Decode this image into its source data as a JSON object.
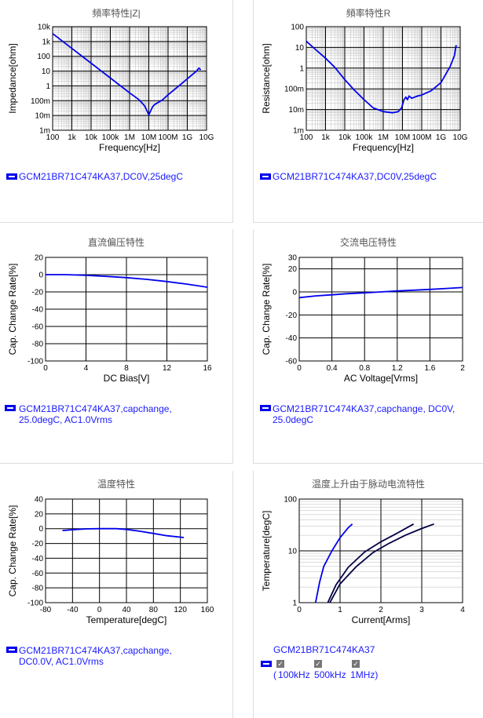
{
  "panels": {
    "impedance": {
      "title": "頻率特性|Z|",
      "legend": "GCM21BR71C474KA37,DC0V,25degC"
    },
    "resistance": {
      "title": "頻率特性R",
      "legend": "GCM21BR71C474KA37,DC0V,25degC"
    },
    "dcbias": {
      "title": "直流偏压特性",
      "legend_line1": "GCM21BR71C474KA37,capchange,",
      "legend_line2": "25.0degC, AC1.0Vrms"
    },
    "acvoltage": {
      "title": "交流电压特性",
      "legend_line1": "GCM21BR71C474KA37,capchange, DC0V,",
      "legend_line2": "25.0degC"
    },
    "temperature": {
      "title": "温度特性",
      "legend_line1": "GCM21BR71C474KA37,capchange,",
      "legend_line2": "DC0.0V, AC1.0Vrms"
    },
    "ripple": {
      "title": "温度上升由于脉动电流特性",
      "legend": "GCM21BR71C474KA37",
      "check_mark": "✓",
      "freq_open": "(",
      "freqs": [
        "100kHz",
        "500kHz",
        "1MHz)"
      ]
    }
  },
  "colors": {
    "curve": "#0000ee",
    "curve_dark": "#000044",
    "grid_major": "#000000",
    "grid_minor": "#bbbbbb",
    "legend": "#1a1aff"
  },
  "chart_data": [
    {
      "id": "impedance",
      "type": "line",
      "title": "頻率特性|Z|",
      "xlabel": "Frequency[Hz]",
      "ylabel": "Impedance[ohm]",
      "x_scale": "log",
      "y_scale": "log",
      "xlim": [
        100,
        10000000000
      ],
      "ylim": [
        0.001,
        10000
      ],
      "x_ticks": [
        {
          "v": 100,
          "l": "100"
        },
        {
          "v": 1000,
          "l": "1k"
        },
        {
          "v": 10000,
          "l": "10k"
        },
        {
          "v": 100000,
          "l": "100k"
        },
        {
          "v": 1000000,
          "l": "1M"
        },
        {
          "v": 10000000,
          "l": "10M"
        },
        {
          "v": 100000000,
          "l": "100M"
        },
        {
          "v": 1000000000,
          "l": "1G"
        },
        {
          "v": 10000000000,
          "l": "10G"
        }
      ],
      "y_ticks": [
        {
          "v": 0.001,
          "l": "1m"
        },
        {
          "v": 0.01,
          "l": "10m"
        },
        {
          "v": 0.1,
          "l": "100m"
        },
        {
          "v": 1,
          "l": "1"
        },
        {
          "v": 10,
          "l": "10"
        },
        {
          "v": 100,
          "l": "100"
        },
        {
          "v": 1000,
          "l": "1k"
        },
        {
          "v": 10000,
          "l": "10k"
        }
      ],
      "series": [
        {
          "values": [
            [
              100,
              3400
            ],
            [
              1000,
              340
            ],
            [
              10000,
              34
            ],
            [
              100000,
              3.4
            ],
            [
              1000000,
              0.34
            ],
            [
              3000000,
              0.12
            ],
            [
              6000000,
              0.045
            ],
            [
              9000000,
              0.015
            ],
            [
              10000000,
              0.011
            ],
            [
              12000000,
              0.018
            ],
            [
              16000000,
              0.04
            ],
            [
              20000000,
              0.055
            ],
            [
              50000000,
              0.11
            ],
            [
              100000000,
              0.25
            ],
            [
              500000000,
              1.4
            ],
            [
              1000000000,
              3
            ],
            [
              3000000000,
              10
            ],
            [
              4000000000,
              16
            ],
            [
              5000000000,
              12
            ]
          ]
        }
      ]
    },
    {
      "id": "resistance",
      "type": "line",
      "title": "頻率特性R",
      "xlabel": "Frequency[Hz]",
      "ylabel": "Resistance[ohm]",
      "x_scale": "log",
      "y_scale": "log",
      "xlim": [
        100,
        10000000000
      ],
      "ylim": [
        0.001,
        100
      ],
      "x_ticks": [
        {
          "v": 100,
          "l": "100"
        },
        {
          "v": 1000,
          "l": "1k"
        },
        {
          "v": 10000,
          "l": "10k"
        },
        {
          "v": 100000,
          "l": "100k"
        },
        {
          "v": 1000000,
          "l": "1M"
        },
        {
          "v": 10000000,
          "l": "10M"
        },
        {
          "v": 100000000,
          "l": "100M"
        },
        {
          "v": 1000000000,
          "l": "1G"
        },
        {
          "v": 10000000000,
          "l": "10G"
        }
      ],
      "y_ticks": [
        {
          "v": 0.001,
          "l": "1m"
        },
        {
          "v": 0.01,
          "l": "10m"
        },
        {
          "v": 0.1,
          "l": "100m"
        },
        {
          "v": 1,
          "l": "1"
        },
        {
          "v": 10,
          "l": "10"
        },
        {
          "v": 100,
          "l": "100"
        }
      ],
      "series": [
        {
          "values": [
            [
              100,
              20
            ],
            [
              300,
              8
            ],
            [
              1000,
              3
            ],
            [
              3000,
              1.1
            ],
            [
              10000,
              0.28
            ],
            [
              30000,
              0.09
            ],
            [
              100000,
              0.03
            ],
            [
              300000,
              0.012
            ],
            [
              1000000,
              0.008
            ],
            [
              3000000,
              0.007
            ],
            [
              6000000,
              0.008
            ],
            [
              9000000,
              0.012
            ],
            [
              12000000,
              0.03
            ],
            [
              15000000,
              0.04
            ],
            [
              18000000,
              0.03
            ],
            [
              22000000,
              0.045
            ],
            [
              30000000,
              0.035
            ],
            [
              60000000,
              0.045
            ],
            [
              100000000,
              0.05
            ],
            [
              300000000,
              0.08
            ],
            [
              1000000000,
              0.2
            ],
            [
              3000000000,
              1.2
            ],
            [
              5000000000,
              4
            ],
            [
              6000000000,
              12
            ],
            [
              6500000000,
              11
            ]
          ]
        }
      ]
    },
    {
      "id": "dcbias",
      "type": "line",
      "title": "直流偏压特性",
      "xlabel": "DC Bias[V]",
      "ylabel": "Cap. Change Rate[%]",
      "xlim": [
        0,
        16
      ],
      "ylim": [
        -100,
        20
      ],
      "x_ticks": [
        {
          "v": 0,
          "l": "0"
        },
        {
          "v": 4,
          "l": "4"
        },
        {
          "v": 8,
          "l": "8"
        },
        {
          "v": 12,
          "l": "12"
        },
        {
          "v": 16,
          "l": "16"
        }
      ],
      "y_ticks": [
        {
          "v": -100,
          "l": "-100"
        },
        {
          "v": -80,
          "l": "-80"
        },
        {
          "v": -60,
          "l": "-60"
        },
        {
          "v": -40,
          "l": "-40"
        },
        {
          "v": -20,
          "l": "-20"
        },
        {
          "v": 0,
          "l": "0"
        },
        {
          "v": 20,
          "l": "20"
        }
      ],
      "series": [
        {
          "values": [
            [
              0,
              0
            ],
            [
              2,
              0
            ],
            [
              4,
              -0.8
            ],
            [
              6,
              -2
            ],
            [
              8,
              -3.5
            ],
            [
              10,
              -5.5
            ],
            [
              12,
              -8
            ],
            [
              14,
              -11
            ],
            [
              16,
              -14.5
            ]
          ]
        }
      ]
    },
    {
      "id": "acvoltage",
      "type": "line",
      "title": "交流电压特性",
      "xlabel": "AC Voltage[Vrms]",
      "ylabel": "Cap. Change Rate[%]",
      "xlim": [
        0,
        2
      ],
      "ylim": [
        -60,
        30
      ],
      "x_ticks": [
        {
          "v": 0,
          "l": "0"
        },
        {
          "v": 0.4,
          "l": "0.4"
        },
        {
          "v": 0.8,
          "l": "0.8"
        },
        {
          "v": 1.2,
          "l": "1.2"
        },
        {
          "v": 1.6,
          "l": "1.6"
        },
        {
          "v": 2,
          "l": "2"
        }
      ],
      "y_ticks": [
        {
          "v": -60,
          "l": "-60"
        },
        {
          "v": -40,
          "l": "-40"
        },
        {
          "v": -20,
          "l": "-20"
        },
        {
          "v": 0,
          "l": "0"
        },
        {
          "v": 20,
          "l": "20"
        },
        {
          "v": 30,
          "l": "30"
        }
      ],
      "series": [
        {
          "values": [
            [
              0,
              -5
            ],
            [
              0.2,
              -3.5
            ],
            [
              0.4,
              -2.5
            ],
            [
              0.6,
              -1.5
            ],
            [
              0.8,
              -0.8
            ],
            [
              1.0,
              0
            ],
            [
              1.2,
              0.8
            ],
            [
              1.4,
              1.5
            ],
            [
              1.6,
              2.2
            ],
            [
              1.8,
              3
            ],
            [
              2.0,
              3.8
            ]
          ]
        }
      ]
    },
    {
      "id": "temperature",
      "type": "line",
      "title": "温度特性",
      "xlabel": "Temperature[degC]",
      "ylabel": "Cap. Change Rate[%]",
      "xlim": [
        -80,
        160
      ],
      "ylim": [
        -100,
        40
      ],
      "x_ticks": [
        {
          "v": -80,
          "l": "-80"
        },
        {
          "v": -40,
          "l": "-40"
        },
        {
          "v": 0,
          "l": "0"
        },
        {
          "v": 40,
          "l": "40"
        },
        {
          "v": 80,
          "l": "80"
        },
        {
          "v": 120,
          "l": "120"
        },
        {
          "v": 160,
          "l": "160"
        }
      ],
      "y_ticks": [
        {
          "v": -100,
          "l": "-100"
        },
        {
          "v": -80,
          "l": "-80"
        },
        {
          "v": -60,
          "l": "-60"
        },
        {
          "v": -40,
          "l": "-40"
        },
        {
          "v": -20,
          "l": "-20"
        },
        {
          "v": 0,
          "l": "0"
        },
        {
          "v": 20,
          "l": "20"
        },
        {
          "v": 40,
          "l": "40"
        }
      ],
      "series": [
        {
          "values": [
            [
              -55,
              -2.5
            ],
            [
              -40,
              -1.5
            ],
            [
              -20,
              -0.3
            ],
            [
              0,
              0
            ],
            [
              25,
              0
            ],
            [
              40,
              -1
            ],
            [
              60,
              -3.5
            ],
            [
              80,
              -6.5
            ],
            [
              100,
              -9.5
            ],
            [
              125,
              -12
            ]
          ]
        }
      ]
    },
    {
      "id": "ripple",
      "type": "line",
      "title": "温度上升由于脉动电流特性",
      "xlabel": "Current[Arms]",
      "ylabel": "Temperature[degC]",
      "y_scale": "log",
      "xlim": [
        0,
        4
      ],
      "ylim": [
        1,
        100
      ],
      "x_ticks": [
        {
          "v": 0,
          "l": "0"
        },
        {
          "v": 1,
          "l": "1"
        },
        {
          "v": 2,
          "l": "2"
        },
        {
          "v": 3,
          "l": "3"
        },
        {
          "v": 4,
          "l": "4"
        }
      ],
      "y_ticks": [
        {
          "v": 1,
          "l": "1"
        },
        {
          "v": 10,
          "l": "10"
        },
        {
          "v": 100,
          "l": "100"
        }
      ],
      "series": [
        {
          "name": "100kHz",
          "values": [
            [
              0.4,
              1
            ],
            [
              0.5,
              2.5
            ],
            [
              0.6,
              5
            ],
            [
              0.8,
              10
            ],
            [
              1.0,
              18
            ],
            [
              1.2,
              28
            ],
            [
              1.3,
              33
            ]
          ]
        },
        {
          "name": "500kHz",
          "values": [
            [
              0.7,
              1
            ],
            [
              0.9,
              2.2
            ],
            [
              1.2,
              4.8
            ],
            [
              1.6,
              9.5
            ],
            [
              2.0,
              15
            ],
            [
              2.4,
              22
            ],
            [
              2.8,
              33
            ]
          ]
        },
        {
          "name": "1MHz",
          "values": [
            [
              0.75,
              1
            ],
            [
              1.0,
              2.3
            ],
            [
              1.4,
              5
            ],
            [
              1.8,
              9.2
            ],
            [
              2.2,
              14
            ],
            [
              2.6,
              20
            ],
            [
              3.0,
              27
            ],
            [
              3.3,
              33
            ]
          ]
        }
      ]
    }
  ]
}
